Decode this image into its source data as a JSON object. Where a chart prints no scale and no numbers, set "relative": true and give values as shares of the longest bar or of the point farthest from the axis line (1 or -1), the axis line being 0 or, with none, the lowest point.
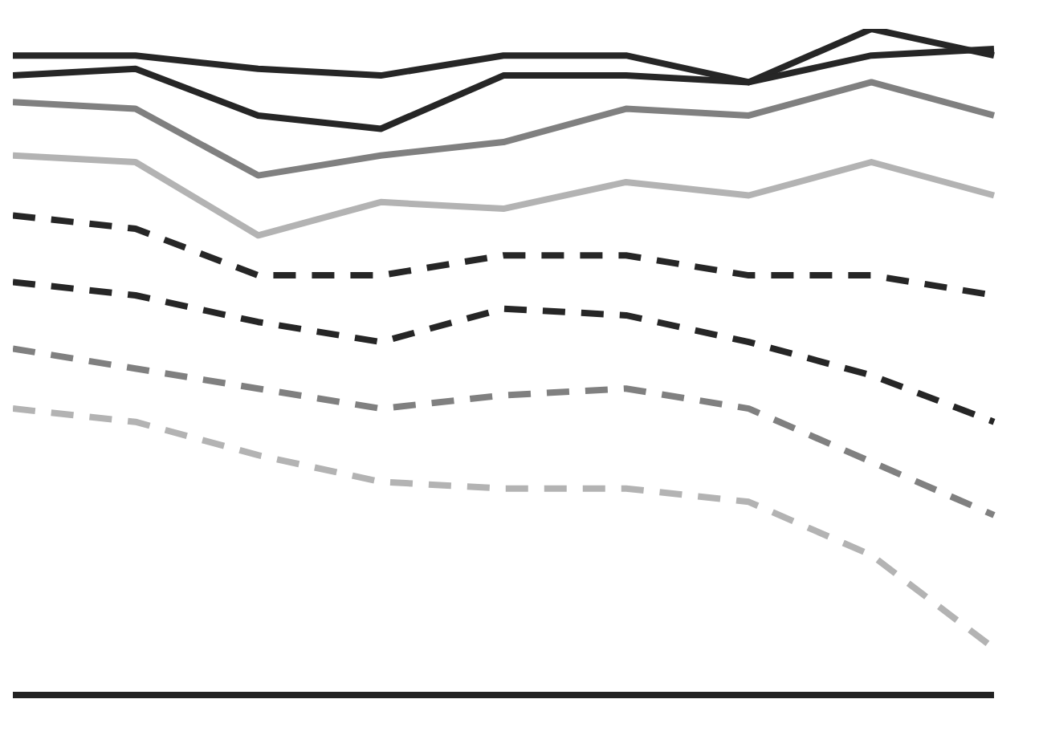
{
  "chart_data": {
    "type": "line",
    "relative": true,
    "marker": "none",
    "legend": false,
    "categories": [
      null,
      null,
      null,
      null,
      null,
      null,
      null,
      null,
      null
    ],
    "series": [
      {
        "color": "#262626",
        "line_style": "solid",
        "values": [
          0.96,
          0.96,
          0.94,
          0.93,
          0.96,
          0.96,
          0.92,
          1.0,
          0.96
        ]
      },
      {
        "color": "#262626",
        "line_style": "solid",
        "values": [
          0.93,
          0.94,
          0.87,
          0.85,
          0.93,
          0.93,
          0.92,
          0.96,
          0.97
        ]
      },
      {
        "color": "#808080",
        "line_style": "solid",
        "values": [
          0.89,
          0.88,
          0.78,
          0.81,
          0.83,
          0.88,
          0.87,
          0.92,
          0.87
        ]
      },
      {
        "color": "#b3b3b3",
        "line_style": "solid",
        "values": [
          0.81,
          0.8,
          0.69,
          0.74,
          0.73,
          0.77,
          0.75,
          0.8,
          0.75
        ]
      },
      {
        "color": "#262626",
        "line_style": "dashed",
        "values": [
          0.72,
          0.7,
          0.63,
          0.63,
          0.66,
          0.66,
          0.63,
          0.63,
          0.6
        ]
      },
      {
        "color": "#262626",
        "line_style": "dashed",
        "values": [
          0.62,
          0.6,
          0.56,
          0.53,
          0.58,
          0.57,
          0.53,
          0.48,
          0.41
        ]
      },
      {
        "color": "#808080",
        "line_style": "dashed",
        "values": [
          0.52,
          0.49,
          0.46,
          0.43,
          0.45,
          0.46,
          0.43,
          0.35,
          0.27
        ]
      },
      {
        "color": "#b3b3b3",
        "line_style": "dashed",
        "values": [
          0.43,
          0.41,
          0.36,
          0.32,
          0.31,
          0.31,
          0.29,
          0.21,
          0.07
        ]
      }
    ]
  }
}
